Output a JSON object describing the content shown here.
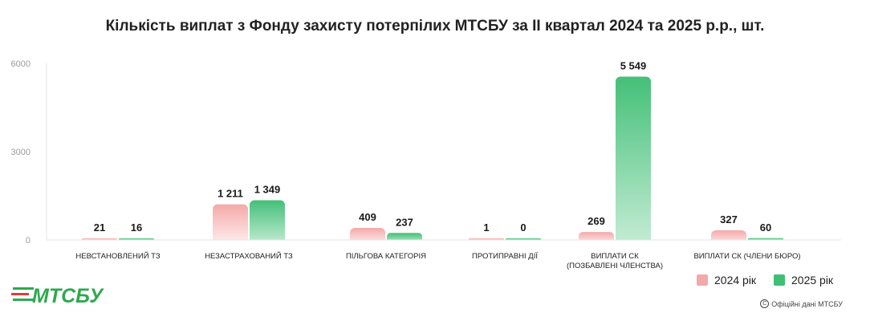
{
  "chart_data": {
    "type": "bar",
    "title": "Кількість виплат з Фонду захисту потерпілих МТСБУ за II квартал 2024 та 2025 р.р., шт.",
    "categories": [
      [
        "НЕВСТАНОВЛЕНИЙ ТЗ"
      ],
      [
        "НЕЗАСТРАХОВАНИЙ ТЗ"
      ],
      [
        "ПІЛЬГОВА КАТЕГОРІЯ"
      ],
      [
        "ПРОТИПРАВНІ ДІЇ"
      ],
      [
        "ВИПЛАТИ СК",
        "(ПОЗБАВЛЕНІ ЧЛЕНСТВА)"
      ],
      [
        "ВИПЛАТИ СК (ЧЛЕНИ БЮРО)"
      ]
    ],
    "series": [
      {
        "name": "2024 рік",
        "color": "#f2aaa8",
        "values": [
          21,
          1211,
          409,
          1,
          269,
          327
        ],
        "labels": [
          "21",
          "1 211",
          "409",
          "1",
          "269",
          "327"
        ]
      },
      {
        "name": "2025 рік",
        "color": "#3fbf74",
        "values": [
          16,
          1349,
          237,
          0,
          5549,
          60
        ],
        "labels": [
          "16",
          "1 349",
          "237",
          "0",
          "5 549",
          "60"
        ]
      }
    ],
    "ylim": [
      0,
      6000
    ],
    "yticks": [
      0,
      3000,
      6000
    ],
    "grid": false,
    "legend_position": "bottom-right",
    "data_labels": true
  },
  "logo_text": "МТСБУ",
  "source_text": "Офіційні дані МТСБУ",
  "source_icon": "copyright-icon",
  "brand_color": "#2fa84f"
}
